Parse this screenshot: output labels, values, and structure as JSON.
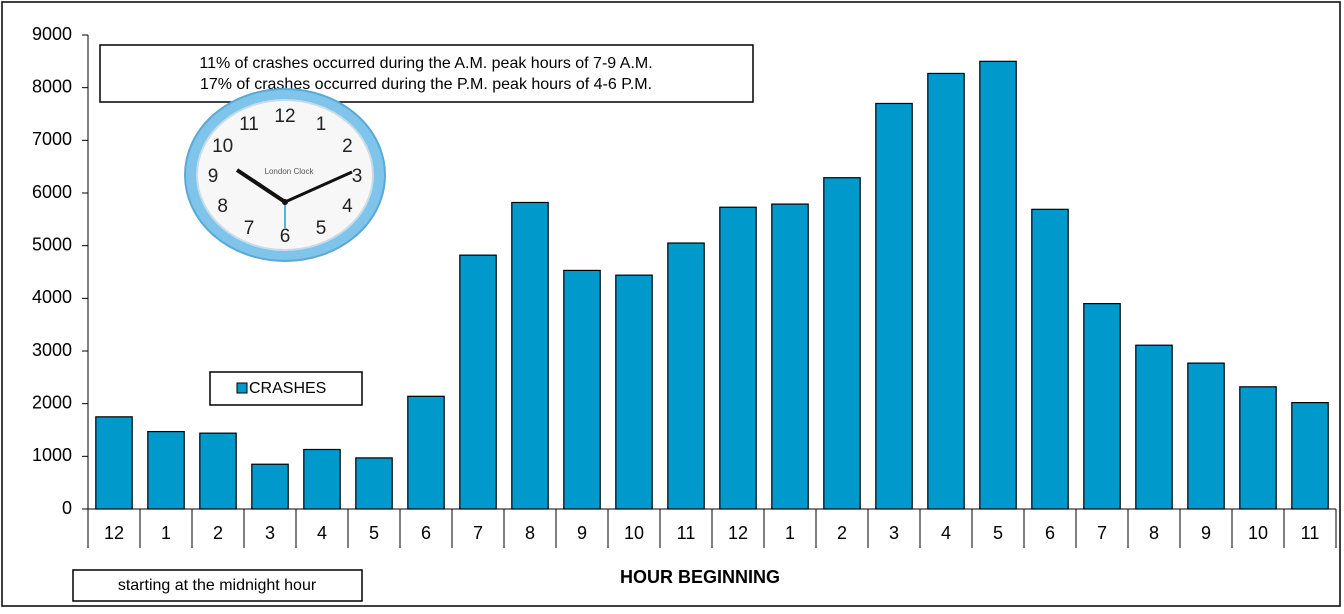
{
  "chart_data": {
    "type": "bar",
    "categories": [
      "12",
      "1",
      "2",
      "3",
      "4",
      "5",
      "6",
      "7",
      "8",
      "9",
      "10",
      "11",
      "12",
      "1",
      "2",
      "3",
      "4",
      "5",
      "6",
      "7",
      "8",
      "9",
      "10",
      "11"
    ],
    "series": [
      {
        "name": "CRASHES",
        "color": "#0099cc",
        "values": [
          1750,
          1470,
          1440,
          850,
          1130,
          970,
          2140,
          4820,
          5820,
          4530,
          4440,
          5050,
          5730,
          5790,
          6290,
          7700,
          8270,
          8500,
          5690,
          3900,
          3110,
          2770,
          2320,
          2020
        ]
      }
    ],
    "ylim": [
      0,
      9000
    ],
    "yticks": [
      0,
      1000,
      2000,
      3000,
      4000,
      5000,
      6000,
      7000,
      8000,
      9000
    ],
    "xlabel": "HOUR BEGINNING",
    "annotations": [
      "11% of crashes occurred during the A.M. peak hours of 7-9 A.M.",
      "17% of crashes occurred during the P.M. peak hours of 4-6 P.M.",
      "starting at the midnight hour"
    ],
    "legend": "left"
  },
  "clock": {
    "numerals": [
      "12",
      "1",
      "2",
      "3",
      "4",
      "5",
      "6",
      "7",
      "8",
      "9",
      "10",
      "11"
    ],
    "brand": "London Clock"
  }
}
